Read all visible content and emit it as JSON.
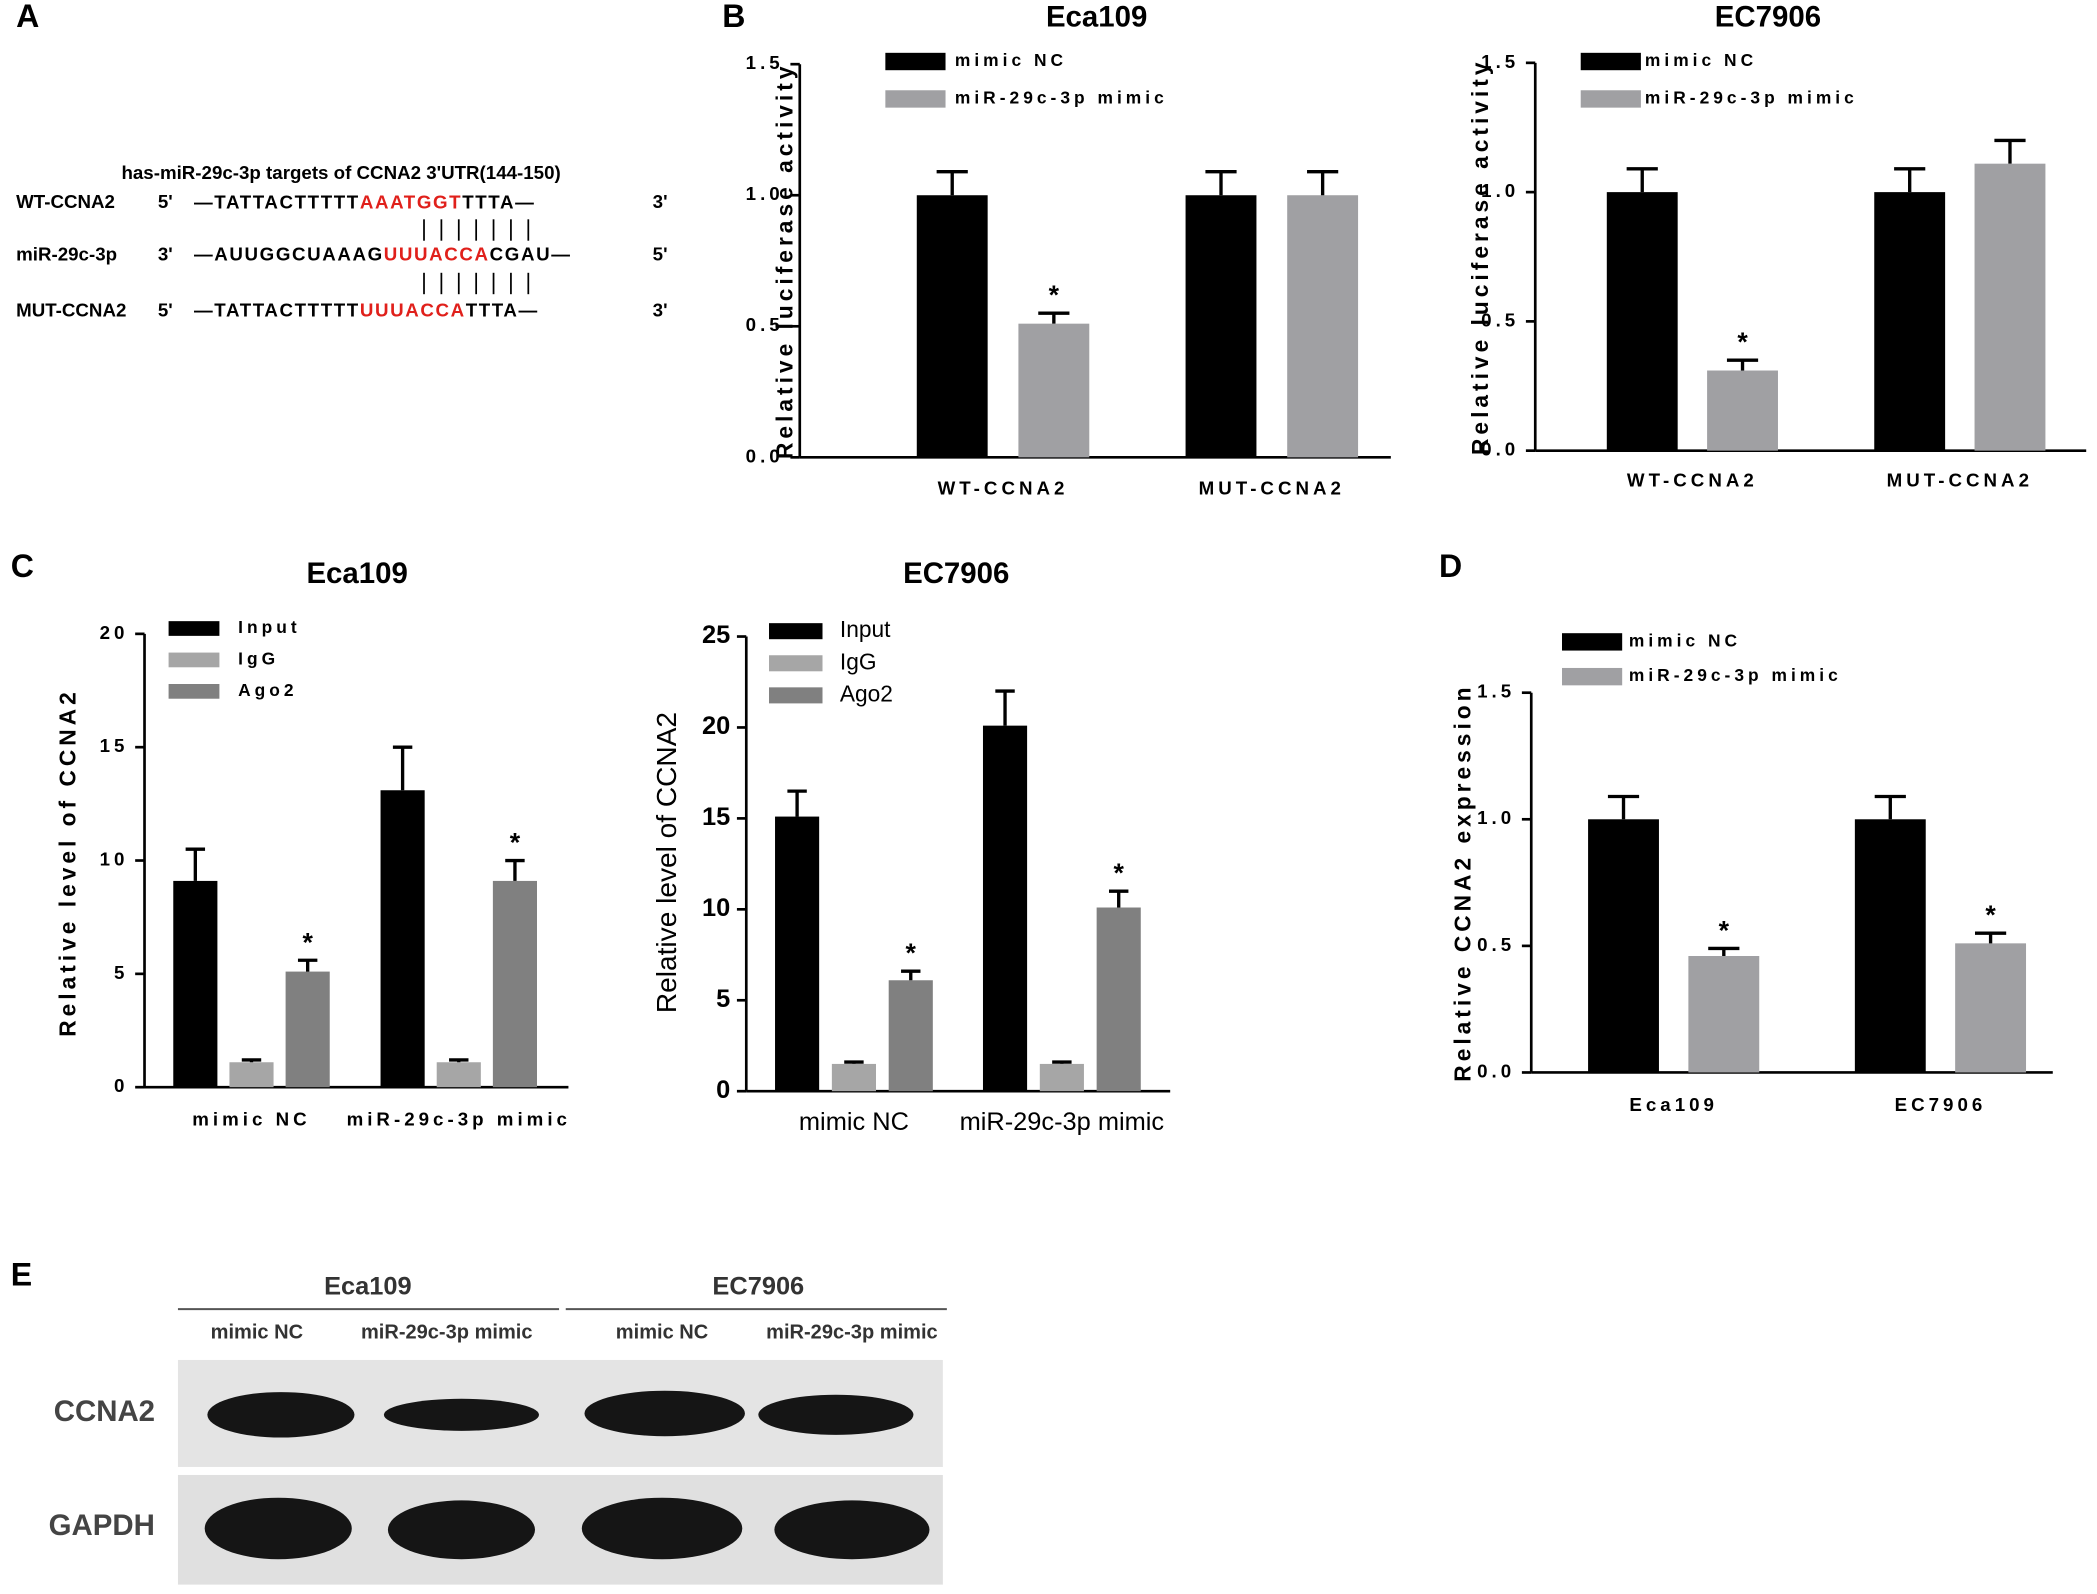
{
  "panel_labels": [
    "A",
    "B",
    "C",
    "D",
    "E"
  ],
  "sequence_panel": {
    "title": "has-miR-29c-3p targets of CCNA2 3'UTR(144-150)",
    "rows": [
      {
        "name": "WT-CCNA2",
        "left_end": "5'",
        "before": "—TATTACTTTTT",
        "site": "AAATGGT",
        "after": "TTTA—",
        "right_end": "3'"
      },
      {
        "name": "miR-29c-3p",
        "left_end": "3'",
        "before": "—AUUGGCUAAAG",
        "site": "UUUACCA",
        "after": "CGAU—",
        "right_end": "5'"
      },
      {
        "name": "MUT-CCNA2",
        "left_end": "5'",
        "before": "—TATTACTTTTT",
        "site": "UUUACCA",
        "after": "TTTA—",
        "right_end": "3'"
      }
    ]
  },
  "blot_panel": {
    "groups": [
      "Eca109",
      "EC7906"
    ],
    "lanes": [
      "mimic NC",
      "miR-29c-3p mimic",
      "mimic NC",
      "miR-29c-3p mimic"
    ],
    "rows": [
      "CCNA2",
      "GAPDH"
    ]
  },
  "chart_data": [
    {
      "type": "bar",
      "title": "Eca109",
      "y_label": "Relative luciferase activity",
      "categories": [
        "WT-CCNA2",
        "MUT-CCNA2"
      ],
      "series": [
        {
          "name": "mimic NC",
          "color": "#000000",
          "values": [
            1.0,
            1.0
          ],
          "errors": [
            0.09,
            0.09
          ],
          "sig": [
            null,
            null
          ]
        },
        {
          "name": "miR-29c-3p mimic",
          "color": "#a0a0a3",
          "values": [
            0.51,
            1.0
          ],
          "errors": [
            0.04,
            0.09
          ],
          "sig": [
            "*",
            null
          ]
        }
      ],
      "ylim": [
        0,
        1.5
      ],
      "yticks": [
        {
          "value": 0,
          "label": "0.0"
        },
        0.5,
        {
          "value": 1,
          "label": "1.0"
        },
        1.5
      ],
      "legend": "top-left"
    },
    {
      "type": "bar",
      "title": "EC7906",
      "y_label": "Relative luciferase activity",
      "categories": [
        "WT-CCNA2",
        "MUT-CCNA2"
      ],
      "series": [
        {
          "name": "mimic NC",
          "color": "#000000",
          "values": [
            1.0,
            1.0
          ],
          "errors": [
            0.09,
            0.09
          ],
          "sig": [
            null,
            null
          ]
        },
        {
          "name": "miR-29c-3p mimic",
          "color": "#a0a0a3",
          "values": [
            0.31,
            1.11
          ],
          "errors": [
            0.04,
            0.09
          ],
          "sig": [
            "*",
            null
          ]
        }
      ],
      "ylim": [
        0,
        1.5
      ],
      "yticks": [
        {
          "value": 0,
          "label": "0.0"
        },
        0.5,
        {
          "value": 1,
          "label": "1.0"
        },
        1.5
      ],
      "legend": "top-left"
    },
    {
      "type": "bar",
      "title": "Eca109",
      "y_label": "Relative level of CCNA2",
      "categories": [
        "mimic NC",
        "miR-29c-3p mimic"
      ],
      "series": [
        {
          "name": "Input",
          "color": "#000000",
          "values": [
            9.1,
            13.1
          ],
          "errors": [
            1.4,
            1.9
          ],
          "sig": [
            null,
            null
          ]
        },
        {
          "name": "IgG",
          "color": "#a6a6a6",
          "values": [
            1.1,
            1.1
          ],
          "errors": [
            0.1,
            0.1
          ],
          "sig": [
            null,
            null
          ]
        },
        {
          "name": "Ago2",
          "color": "#808080",
          "values": [
            5.1,
            9.1
          ],
          "errors": [
            0.5,
            0.9
          ],
          "sig": [
            "*",
            "*"
          ]
        }
      ],
      "ylim": [
        0,
        20
      ],
      "yticks": [
        0,
        5,
        10,
        15,
        20
      ],
      "legend": "top-left"
    },
    {
      "type": "bar",
      "title": "EC7906",
      "y_label": "Relative level of CCNA2",
      "categories": [
        "mimic NC",
        "miR-29c-3p mimic"
      ],
      "series": [
        {
          "name": "Input",
          "color": "#000000",
          "values": [
            15.1,
            20.1
          ],
          "errors": [
            1.4,
            1.9
          ],
          "sig": [
            null,
            null
          ]
        },
        {
          "name": "IgG",
          "color": "#a6a6a6",
          "values": [
            1.5,
            1.5
          ],
          "errors": [
            0.1,
            0.1
          ],
          "sig": [
            null,
            null
          ]
        },
        {
          "name": "Ago2",
          "color": "#808080",
          "values": [
            6.1,
            10.1
          ],
          "errors": [
            0.5,
            0.9
          ],
          "sig": [
            "*",
            "*"
          ]
        }
      ],
      "ylim": [
        0,
        25
      ],
      "yticks": [
        0,
        5,
        10,
        15,
        20,
        25
      ],
      "legend": "top-left"
    },
    {
      "type": "bar",
      "y_label": "Relative CCNA2 expression",
      "categories": [
        "Eca109",
        "EC7906"
      ],
      "series": [
        {
          "name": "mimic NC",
          "color": "#000000",
          "values": [
            1.0,
            1.0
          ],
          "errors": [
            0.09,
            0.09
          ],
          "sig": [
            null,
            null
          ]
        },
        {
          "name": "miR-29c-3p mimic",
          "color": "#a0a0a3",
          "values": [
            0.46,
            0.51
          ],
          "errors": [
            0.03,
            0.04
          ],
          "sig": [
            "*",
            "*"
          ]
        }
      ],
      "ylim": [
        0,
        1.5
      ],
      "yticks": [
        {
          "value": 0,
          "label": "0.0"
        },
        0.5,
        {
          "value": 1,
          "label": "1.0"
        },
        1.5
      ],
      "legend": "top-left"
    }
  ]
}
